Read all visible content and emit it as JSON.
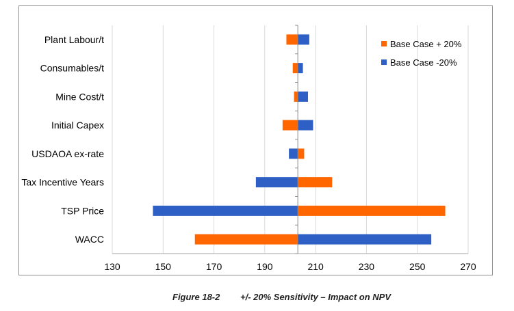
{
  "chart_data": {
    "type": "bar",
    "orientation": "horizontal",
    "subtype": "tornado",
    "categories": [
      "Plant Labour/t",
      "Consumables/t",
      "Mine Cost/t",
      "Initial Capex",
      "USDAOA ex-rate",
      "Tax Incentive Years",
      "TSP Price",
      "WACC"
    ],
    "base_value": 203,
    "series": [
      {
        "name": "Base Case + 20%",
        "color": "#ff6600",
        "values": [
          198.5,
          201,
          201.5,
          197,
          205.5,
          216.5,
          261,
          162.5
        ]
      },
      {
        "name": "Base Case -20%",
        "color": "#2e5fc4",
        "values": [
          207.5,
          205,
          207,
          209,
          199.5,
          186.5,
          146,
          255.5
        ]
      }
    ],
    "x_ticks": [
      "130",
      "150",
      "170",
      "190",
      "210",
      "230",
      "250",
      "270"
    ],
    "xlim": [
      130,
      270
    ],
    "grid": "vertical",
    "legend_position": "top-right"
  },
  "caption": {
    "number": "Figure 18-2",
    "text": "+/- 20% Sensitivity – Impact on NPV"
  }
}
